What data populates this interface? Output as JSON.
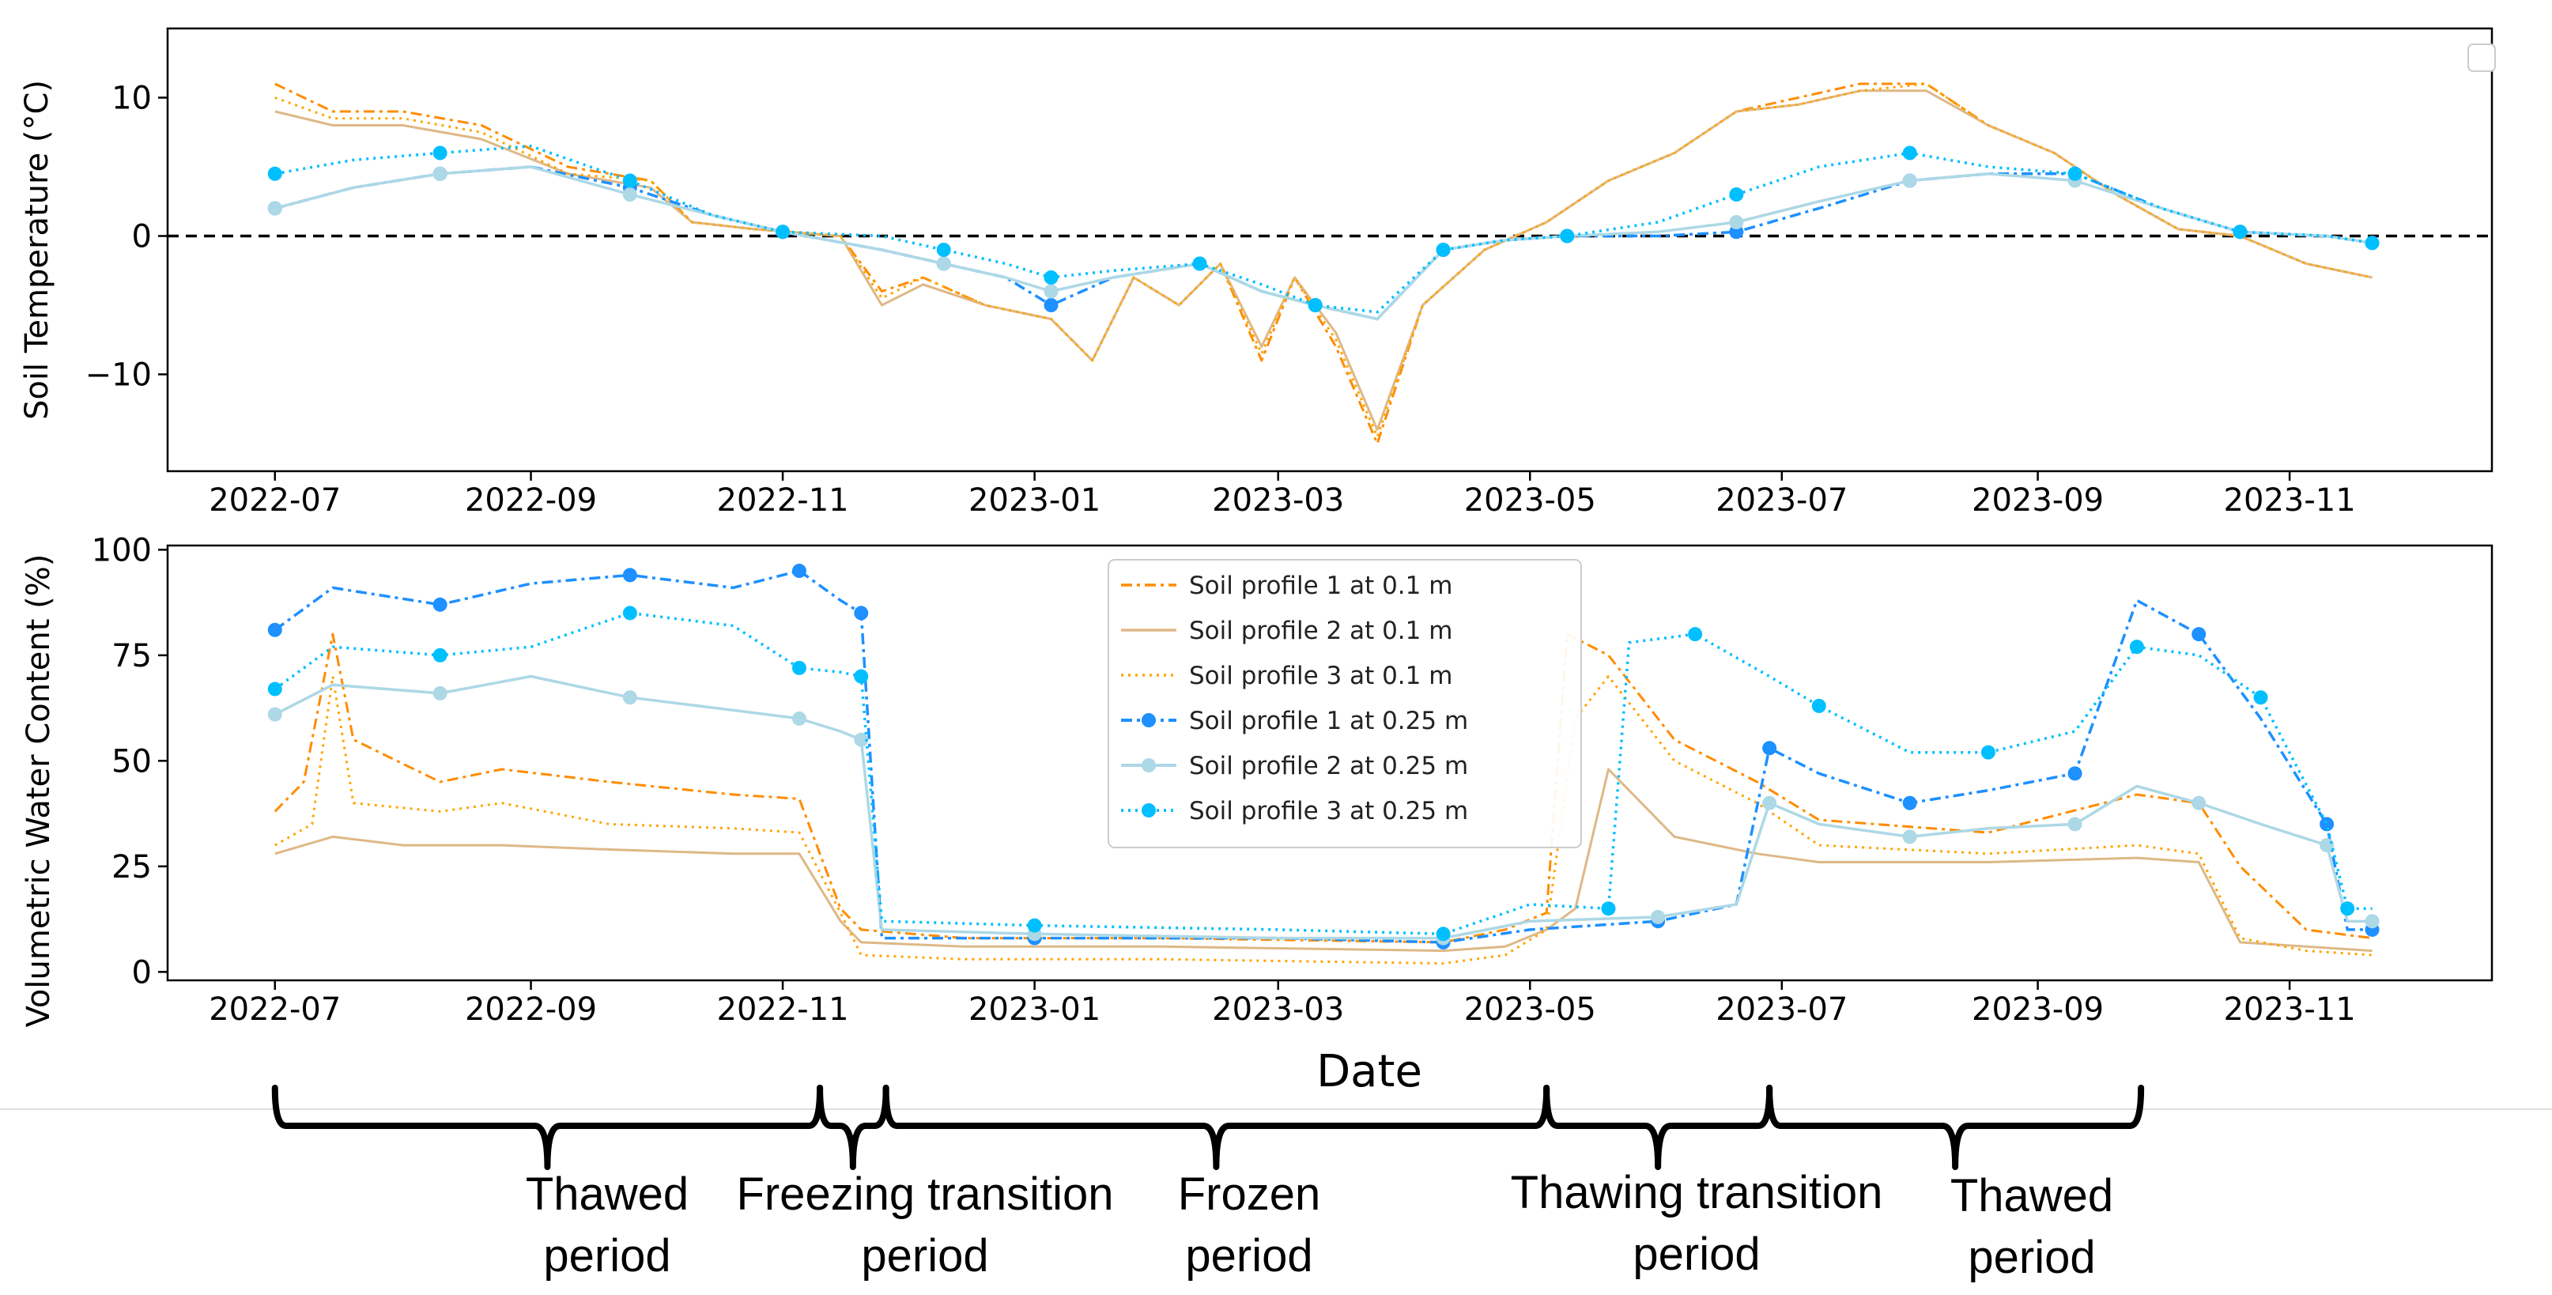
{
  "colors": {
    "p1_01": "#ff8c00",
    "p2_01": "#deb887",
    "p3_01": "#ffa500",
    "p1_025": "#1e90ff",
    "p2_025": "#add8e6",
    "p3_025": "#00bfff",
    "zero_line": "#000000"
  },
  "chart_data": [
    {
      "type": "line",
      "ylabel": "Soil Temperature (°C)",
      "ylim": [
        -17,
        15
      ],
      "xlim": [
        "2022-06-05",
        "2023-12-20"
      ],
      "x_ticks": [
        "2022-07",
        "2022-09",
        "2022-11",
        "2023-01",
        "2023-03",
        "2023-05",
        "2023-07",
        "2023-09",
        "2023-11"
      ],
      "y_ticks": [
        10,
        0,
        -10
      ],
      "y_tick_labels": [
        "10",
        "0",
        "−10"
      ],
      "reference_line": 0,
      "series": [
        {
          "name": "Soil profile 1 at 0.1 m",
          "x": [
            "2022-07-01",
            "2022-07-15",
            "2022-08-01",
            "2022-08-20",
            "2022-09-10",
            "2022-09-30",
            "2022-10-10",
            "2022-10-25",
            "2022-11-15",
            "2022-11-25",
            "2022-12-05",
            "2022-12-20",
            "2023-01-05",
            "2023-01-15",
            "2023-01-25",
            "2023-02-05",
            "2023-02-15",
            "2023-02-25",
            "2023-03-05",
            "2023-03-15",
            "2023-03-25",
            "2023-04-05",
            "2023-04-20",
            "2023-05-05",
            "2023-05-20",
            "2023-06-05",
            "2023-06-20",
            "2023-07-05",
            "2023-07-20",
            "2023-08-05",
            "2023-08-20",
            "2023-09-05",
            "2023-09-20",
            "2023-10-05",
            "2023-10-20",
            "2023-11-05",
            "2023-11-21"
          ],
          "values": [
            11,
            9,
            9,
            8,
            5,
            4,
            1,
            0.5,
            0,
            -4,
            -3,
            -5,
            -6,
            -9,
            -3,
            -5,
            -2,
            -9,
            -3,
            -8,
            -15,
            -5,
            -1,
            1,
            4,
            6,
            9,
            10,
            11,
            11,
            8,
            6,
            3,
            0.5,
            0,
            -2,
            -3
          ]
        },
        {
          "name": "Soil profile 2 at 0.1 m",
          "x": [
            "2022-07-01",
            "2022-07-15",
            "2022-08-01",
            "2022-08-20",
            "2022-09-10",
            "2022-09-30",
            "2022-10-10",
            "2022-10-25",
            "2022-11-15",
            "2022-11-25",
            "2022-12-05",
            "2022-12-20",
            "2023-01-05",
            "2023-01-15",
            "2023-01-25",
            "2023-02-05",
            "2023-02-15",
            "2023-02-25",
            "2023-03-05",
            "2023-03-15",
            "2023-03-25",
            "2023-04-05",
            "2023-04-20",
            "2023-05-05",
            "2023-05-20",
            "2023-06-05",
            "2023-06-20",
            "2023-07-05",
            "2023-07-20",
            "2023-08-05",
            "2023-08-20",
            "2023-09-05",
            "2023-09-20",
            "2023-10-05",
            "2023-10-20",
            "2023-11-05",
            "2023-11-21"
          ],
          "values": [
            9,
            8,
            8,
            7,
            4.5,
            3.5,
            1,
            0.5,
            0,
            -5,
            -3.5,
            -5,
            -6,
            -9,
            -3,
            -5,
            -2,
            -8,
            -3,
            -7,
            -14,
            -5,
            -1,
            1,
            4,
            6,
            9,
            9.5,
            10.5,
            10.5,
            8,
            6,
            3,
            0.5,
            0,
            -2,
            -3
          ]
        },
        {
          "name": "Soil profile 3 at 0.1 m",
          "x": [
            "2022-07-01",
            "2022-07-15",
            "2022-08-01",
            "2022-08-20",
            "2022-09-10",
            "2022-09-30",
            "2022-10-10",
            "2022-10-25",
            "2022-11-15",
            "2022-11-25",
            "2022-12-05",
            "2022-12-20",
            "2023-01-05",
            "2023-01-15",
            "2023-01-25",
            "2023-02-05",
            "2023-02-15",
            "2023-02-25",
            "2023-03-05",
            "2023-03-15",
            "2023-03-25",
            "2023-04-05",
            "2023-04-20",
            "2023-05-05",
            "2023-05-20",
            "2023-06-05",
            "2023-06-20",
            "2023-07-05",
            "2023-07-20",
            "2023-08-05",
            "2023-08-20",
            "2023-09-05",
            "2023-09-20",
            "2023-10-05",
            "2023-10-20",
            "2023-11-05",
            "2023-11-21"
          ],
          "values": [
            10,
            8.5,
            8.5,
            7.5,
            4.5,
            4,
            1,
            0.5,
            0,
            -4.5,
            -3,
            -5,
            -6,
            -9,
            -3,
            -5,
            -2,
            -8.5,
            -3,
            -7.5,
            -14.5,
            -5,
            -1,
            1,
            4,
            6,
            9,
            9.5,
            10.5,
            11,
            8,
            6,
            3,
            0.5,
            0,
            -2,
            -3
          ]
        },
        {
          "name": "Soil profile 1 at 0.25 m",
          "x": [
            "2022-07-01",
            "2022-07-20",
            "2022-08-10",
            "2022-09-01",
            "2022-09-25",
            "2022-10-15",
            "2022-11-01",
            "2022-11-25",
            "2022-12-10",
            "2022-12-25",
            "2023-01-05",
            "2023-01-20",
            "2023-02-10",
            "2023-02-25",
            "2023-03-10",
            "2023-03-25",
            "2023-04-10",
            "2023-04-25",
            "2023-05-10",
            "2023-06-01",
            "2023-06-20",
            "2023-07-10",
            "2023-08-01",
            "2023-08-20",
            "2023-09-10",
            "2023-10-01",
            "2023-10-20",
            "2023-11-10",
            "2023-11-21"
          ],
          "values": [
            2,
            3.5,
            4.5,
            5,
            3.5,
            1.5,
            0.3,
            -1,
            -2,
            -3,
            -5,
            -3,
            -2,
            -4,
            -5,
            -6,
            -1,
            -0.3,
            0,
            0,
            0.3,
            2,
            4,
            4.5,
            4.5,
            2,
            0.3,
            0,
            -0.5
          ]
        },
        {
          "name": "Soil profile 2 at 0.25 m",
          "x": [
            "2022-07-01",
            "2022-07-20",
            "2022-08-10",
            "2022-09-01",
            "2022-09-25",
            "2022-10-15",
            "2022-11-01",
            "2022-11-25",
            "2022-12-10",
            "2022-12-25",
            "2023-01-05",
            "2023-01-20",
            "2023-02-10",
            "2023-02-25",
            "2023-03-10",
            "2023-03-25",
            "2023-04-10",
            "2023-04-25",
            "2023-05-10",
            "2023-06-01",
            "2023-06-20",
            "2023-07-10",
            "2023-08-01",
            "2023-08-20",
            "2023-09-10",
            "2023-10-01",
            "2023-10-20",
            "2023-11-10",
            "2023-11-21"
          ],
          "values": [
            2,
            3.5,
            4.5,
            5,
            3,
            1.5,
            0.3,
            -1,
            -2,
            -3,
            -4,
            -3,
            -2,
            -4,
            -5,
            -6,
            -1,
            -0.3,
            0,
            0.3,
            1,
            2.5,
            4,
            4.5,
            4,
            2,
            0.3,
            0,
            -0.5
          ]
        },
        {
          "name": "Soil profile 3 at 0.25 m",
          "x": [
            "2022-07-01",
            "2022-07-20",
            "2022-08-10",
            "2022-09-01",
            "2022-09-25",
            "2022-10-15",
            "2022-11-01",
            "2022-11-25",
            "2022-12-10",
            "2022-12-25",
            "2023-01-05",
            "2023-01-20",
            "2023-02-10",
            "2023-02-25",
            "2023-03-10",
            "2023-03-25",
            "2023-04-10",
            "2023-04-25",
            "2023-05-10",
            "2023-06-01",
            "2023-06-20",
            "2023-07-10",
            "2023-08-01",
            "2023-08-20",
            "2023-09-10",
            "2023-10-01",
            "2023-10-20",
            "2023-11-10",
            "2023-11-21"
          ],
          "values": [
            4.5,
            5.5,
            6,
            6.5,
            4,
            1.5,
            0.3,
            0,
            -1,
            -2,
            -3,
            -2.5,
            -2,
            -3.5,
            -5,
            -5.5,
            -1,
            -0.3,
            0,
            1,
            3,
            5,
            6,
            5,
            4.5,
            2,
            0.3,
            0,
            -0.5
          ]
        }
      ]
    },
    {
      "type": "line",
      "xlabel": "Date",
      "ylabel": "Volumetric Water Content (%)",
      "ylim": [
        -2,
        101
      ],
      "xlim": [
        "2022-06-05",
        "2023-12-20"
      ],
      "x_ticks": [
        "2022-07",
        "2022-09",
        "2022-11",
        "2023-01",
        "2023-03",
        "2023-05",
        "2023-07",
        "2023-09",
        "2023-11"
      ],
      "y_ticks": [
        100,
        75,
        50,
        25,
        0
      ],
      "y_tick_labels": [
        "100",
        "75",
        "50",
        "25",
        "0"
      ],
      "legend_position": "top-center",
      "series": [
        {
          "name": "Soil profile 1 at 0.1 m",
          "x": [
            "2022-07-01",
            "2022-07-08",
            "2022-07-15",
            "2022-07-20",
            "2022-08-10",
            "2022-08-25",
            "2022-09-20",
            "2022-10-20",
            "2022-11-05",
            "2022-11-15",
            "2022-11-20",
            "2022-12-15",
            "2023-02-01",
            "2023-04-10",
            "2023-04-25",
            "2023-05-05",
            "2023-05-10",
            "2023-05-20",
            "2023-06-05",
            "2023-06-25",
            "2023-07-10",
            "2023-08-20",
            "2023-09-25",
            "2023-10-10",
            "2023-10-20",
            "2023-11-05",
            "2023-11-21"
          ],
          "values": [
            38,
            45,
            80,
            55,
            45,
            48,
            45,
            42,
            41,
            15,
            10,
            8,
            8,
            7,
            10,
            14,
            80,
            75,
            55,
            45,
            36,
            33,
            42,
            40,
            25,
            10,
            8
          ]
        },
        {
          "name": "Soil profile 2 at 0.1 m",
          "x": [
            "2022-07-01",
            "2022-07-15",
            "2022-08-01",
            "2022-08-25",
            "2022-09-20",
            "2022-10-20",
            "2022-11-05",
            "2022-11-15",
            "2022-11-20",
            "2022-12-15",
            "2023-02-01",
            "2023-04-10",
            "2023-04-25",
            "2023-05-05",
            "2023-05-12",
            "2023-05-20",
            "2023-06-05",
            "2023-06-25",
            "2023-07-10",
            "2023-08-20",
            "2023-09-25",
            "2023-10-10",
            "2023-10-20",
            "2023-11-05",
            "2023-11-21"
          ],
          "values": [
            28,
            32,
            30,
            30,
            29,
            28,
            28,
            12,
            7,
            6,
            6,
            5,
            6,
            10,
            15,
            48,
            32,
            28,
            26,
            26,
            27,
            26,
            7,
            6,
            5
          ]
        },
        {
          "name": "Soil profile 3 at 0.1 m",
          "x": [
            "2022-07-01",
            "2022-07-10",
            "2022-07-15",
            "2022-07-20",
            "2022-08-10",
            "2022-08-25",
            "2022-09-20",
            "2022-10-20",
            "2022-11-05",
            "2022-11-15",
            "2022-11-20",
            "2022-12-15",
            "2023-02-01",
            "2023-04-10",
            "2023-04-25",
            "2023-05-05",
            "2023-05-12",
            "2023-05-20",
            "2023-06-05",
            "2023-06-25",
            "2023-07-10",
            "2023-08-20",
            "2023-09-25",
            "2023-10-10",
            "2023-10-20",
            "2023-11-05",
            "2023-11-21"
          ],
          "values": [
            30,
            35,
            70,
            40,
            38,
            40,
            35,
            34,
            33,
            14,
            4,
            3,
            3,
            2,
            4,
            10,
            60,
            70,
            50,
            40,
            30,
            28,
            30,
            28,
            8,
            5,
            4
          ]
        },
        {
          "name": "Soil profile 1 at 0.25 m",
          "x": [
            "2022-07-01",
            "2022-07-15",
            "2022-08-10",
            "2022-09-01",
            "2022-09-25",
            "2022-10-20",
            "2022-11-05",
            "2022-11-15",
            "2022-11-20",
            "2022-11-25",
            "2023-01-01",
            "2023-03-01",
            "2023-04-10",
            "2023-05-01",
            "2023-06-01",
            "2023-06-20",
            "2023-06-28",
            "2023-07-10",
            "2023-08-01",
            "2023-08-20",
            "2023-09-10",
            "2023-09-25",
            "2023-10-10",
            "2023-10-25",
            "2023-11-10",
            "2023-11-15",
            "2023-11-21"
          ],
          "values": [
            81,
            91,
            87,
            92,
            94,
            91,
            95,
            88,
            85,
            8,
            8,
            8,
            7,
            10,
            12,
            16,
            53,
            47,
            40,
            43,
            47,
            88,
            80,
            60,
            35,
            10,
            10
          ]
        },
        {
          "name": "Soil profile 2 at 0.25 m",
          "x": [
            "2022-07-01",
            "2022-07-15",
            "2022-08-10",
            "2022-09-01",
            "2022-09-25",
            "2022-10-20",
            "2022-11-05",
            "2022-11-15",
            "2022-11-20",
            "2022-11-25",
            "2023-01-01",
            "2023-03-01",
            "2023-04-10",
            "2023-05-01",
            "2023-06-01",
            "2023-06-20",
            "2023-06-28",
            "2023-07-10",
            "2023-08-01",
            "2023-08-20",
            "2023-09-10",
            "2023-09-25",
            "2023-10-10",
            "2023-10-25",
            "2023-11-10",
            "2023-11-15",
            "2023-11-21"
          ],
          "values": [
            61,
            68,
            66,
            70,
            65,
            62,
            60,
            57,
            55,
            10,
            9,
            8,
            8,
            12,
            13,
            16,
            40,
            35,
            32,
            34,
            35,
            44,
            40,
            35,
            30,
            12,
            12
          ]
        },
        {
          "name": "Soil profile 3 at 0.25 m",
          "x": [
            "2022-07-01",
            "2022-07-15",
            "2022-08-10",
            "2022-09-01",
            "2022-09-25",
            "2022-10-20",
            "2022-11-05",
            "2022-11-15",
            "2022-11-20",
            "2022-11-25",
            "2023-01-01",
            "2023-03-01",
            "2023-04-10",
            "2023-05-01",
            "2023-05-20",
            "2023-05-25",
            "2023-06-10",
            "2023-06-28",
            "2023-07-10",
            "2023-08-01",
            "2023-08-20",
            "2023-09-10",
            "2023-09-25",
            "2023-10-10",
            "2023-10-25",
            "2023-11-10",
            "2023-11-15",
            "2023-11-21"
          ],
          "values": [
            67,
            77,
            75,
            77,
            85,
            82,
            72,
            71,
            70,
            12,
            11,
            10,
            9,
            16,
            15,
            78,
            80,
            70,
            63,
            52,
            52,
            57,
            77,
            75,
            65,
            35,
            15,
            15
          ]
        }
      ]
    }
  ],
  "periods": [
    {
      "line1": "Thawed",
      "line2": "period",
      "start": "2022-07-01",
      "end": "2022-11-10"
    },
    {
      "line1": "Freezing transition",
      "line2": "period",
      "start": "2022-11-10",
      "end": "2022-11-26"
    },
    {
      "line1": "Frozen",
      "line2": "period",
      "start": "2022-11-26",
      "end": "2023-05-05"
    },
    {
      "line1": "Thawing transition",
      "line2": "period",
      "start": "2023-05-05",
      "end": "2023-06-28"
    },
    {
      "line1": "Thawed",
      "line2": "period",
      "start": "2023-06-28",
      "end": "2023-09-26"
    }
  ]
}
